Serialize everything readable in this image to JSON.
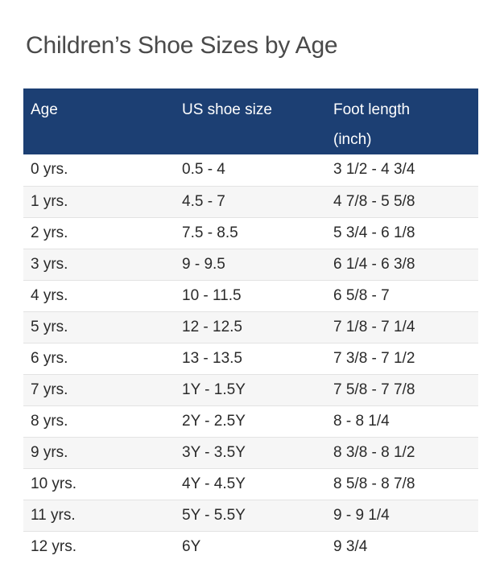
{
  "title": "Children’s Shoe Sizes by Age",
  "table": {
    "headers": [
      "Age",
      "US shoe size",
      "Foot length\n(inch)"
    ],
    "header_fill": "#1c3f73",
    "rows": [
      [
        "0 yrs.",
        "0.5 - 4",
        "3 1/2 - 4 3/4"
      ],
      [
        "1 yrs.",
        "4.5 - 7",
        "4 7/8 - 5 5/8"
      ],
      [
        "2 yrs.",
        "7.5 - 8.5",
        "5 3/4 - 6 1/8"
      ],
      [
        "3 yrs.",
        "9 - 9.5",
        "6 1/4 - 6 3/8"
      ],
      [
        "4 yrs.",
        "10 - 11.5",
        "6 5/8 - 7"
      ],
      [
        "5 yrs.",
        "12 - 12.5",
        "7 1/8 - 7 1/4"
      ],
      [
        "6 yrs.",
        "13 - 13.5",
        "7 3/8 - 7 1/2"
      ],
      [
        "7 yrs.",
        "1Y - 1.5Y",
        "7 5/8 - 7 7/8"
      ],
      [
        "8 yrs.",
        "2Y - 2.5Y",
        "8 - 8 1/4"
      ],
      [
        "9 yrs.",
        "3Y - 3.5Y",
        "8 3/8 - 8 1/2"
      ],
      [
        "10 yrs.",
        "4Y - 4.5Y",
        "8 5/8 - 8 7/8"
      ],
      [
        "11 yrs.",
        "5Y - 5.5Y",
        "9 - 9 1/4"
      ],
      [
        "12 yrs.",
        "6Y",
        "9 3/4"
      ]
    ]
  }
}
